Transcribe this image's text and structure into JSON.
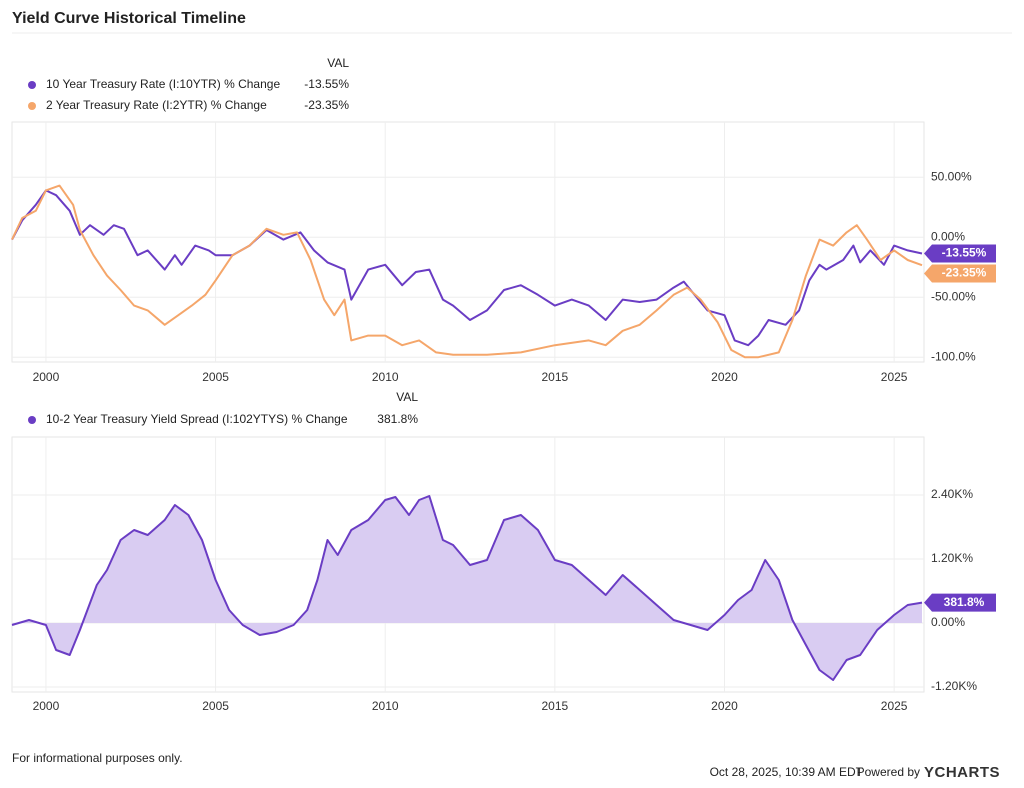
{
  "title": "Yield Curve Historical Timeline",
  "chart_data": [
    {
      "type": "line",
      "legend_header": "VAL",
      "xlim": [
        1999.0,
        2025.88
      ],
      "xticks": [
        2000,
        2005,
        2010,
        2015,
        2020,
        2025
      ],
      "ylim": [
        -104,
        96
      ],
      "yticks": [
        {
          "value": 50,
          "label": "50.00%"
        },
        {
          "value": 0,
          "label": "0.00%"
        },
        {
          "value": -50,
          "label": "-50.00%"
        },
        {
          "value": -100,
          "label": "-100.0%"
        }
      ],
      "grid": true,
      "series": [
        {
          "name": "10 Year Treasury Rate (I:10YTR) % Change",
          "color": "#6a3dc4",
          "last_value_label": "-13.55%",
          "x": [
            1999.0,
            1999.3,
            1999.7,
            2000.0,
            2000.3,
            2000.7,
            2001.0,
            2001.3,
            2001.7,
            2002.0,
            2002.3,
            2002.7,
            2003.0,
            2003.5,
            2003.8,
            2004.0,
            2004.4,
            2004.8,
            2005.0,
            2005.5,
            2006.0,
            2006.5,
            2007.0,
            2007.5,
            2007.9,
            2008.3,
            2008.8,
            2009.0,
            2009.5,
            2010.0,
            2010.5,
            2010.9,
            2011.3,
            2011.7,
            2012.0,
            2012.5,
            2013.0,
            2013.5,
            2014.0,
            2014.5,
            2015.0,
            2015.5,
            2016.0,
            2016.5,
            2017.0,
            2017.5,
            2018.0,
            2018.5,
            2018.8,
            2019.0,
            2019.5,
            2020.0,
            2020.3,
            2020.7,
            2021.0,
            2021.3,
            2021.8,
            2022.2,
            2022.5,
            2022.8,
            2023.0,
            2023.5,
            2023.8,
            2024.0,
            2024.3,
            2024.7,
            2025.0,
            2025.4,
            2025.82
          ],
          "values": [
            -2,
            14,
            27,
            39,
            35,
            22,
            2,
            10,
            2,
            10,
            7,
            -15,
            -11,
            -27,
            -15,
            -23,
            -7,
            -11,
            -15,
            -15,
            -7,
            6,
            -2,
            4,
            -11,
            -21,
            -27,
            -52,
            -27,
            -23,
            -40,
            -29,
            -27,
            -52,
            -57,
            -69,
            -61,
            -44,
            -40,
            -48,
            -57,
            -52,
            -57,
            -69,
            -52,
            -54,
            -52,
            -42,
            -37,
            -44,
            -61,
            -65,
            -86,
            -90,
            -82,
            -69,
            -73,
            -61,
            -36,
            -23,
            -27,
            -19,
            -7,
            -21,
            -11,
            -23,
            -7,
            -11,
            -13.55
          ]
        },
        {
          "name": "2 Year Treasury Rate (I:2YTR) % Change",
          "color": "#f5a66a",
          "last_value_label": "-23.35%",
          "x": [
            1999.0,
            1999.3,
            1999.7,
            2000.0,
            2000.4,
            2000.8,
            2001.0,
            2001.4,
            2001.8,
            2002.2,
            2002.6,
            2003.0,
            2003.5,
            2003.9,
            2004.3,
            2004.7,
            2005.0,
            2005.5,
            2006.0,
            2006.5,
            2007.0,
            2007.4,
            2007.8,
            2008.2,
            2008.5,
            2008.8,
            2009.0,
            2009.5,
            2010.0,
            2010.5,
            2011.0,
            2011.5,
            2012.0,
            2013.0,
            2014.0,
            2015.0,
            2016.0,
            2016.5,
            2017.0,
            2017.5,
            2018.0,
            2018.5,
            2018.9,
            2019.3,
            2019.8,
            2020.2,
            2020.6,
            2021.0,
            2021.6,
            2022.0,
            2022.4,
            2022.8,
            2023.2,
            2023.6,
            2023.9,
            2024.2,
            2024.6,
            2025.0,
            2025.4,
            2025.82
          ],
          "values": [
            -2,
            16,
            22,
            39,
            43,
            27,
            6,
            -15,
            -32,
            -44,
            -57,
            -61,
            -73,
            -65,
            -57,
            -48,
            -36,
            -15,
            -7,
            7,
            2,
            4,
            -19,
            -52,
            -65,
            -52,
            -86,
            -82,
            -82,
            -90,
            -86,
            -96,
            -98,
            -98,
            -96,
            -90,
            -86,
            -90,
            -78,
            -73,
            -61,
            -48,
            -42,
            -52,
            -71,
            -94,
            -100,
            -100,
            -96,
            -69,
            -32,
            -2,
            -7,
            4,
            10,
            -2,
            -19,
            -11,
            -19,
            -23.35
          ]
        }
      ]
    },
    {
      "type": "area",
      "legend_header": "VAL",
      "xlim": [
        1999.0,
        2025.88
      ],
      "xticks": [
        2000,
        2005,
        2010,
        2015,
        2020,
        2025
      ],
      "ylim": [
        -1294,
        3488
      ],
      "yticks": [
        {
          "value": 2400,
          "label": "2.40K%"
        },
        {
          "value": 1200,
          "label": "1.20K%"
        },
        {
          "value": 0,
          "label": "0.00%"
        },
        {
          "value": -1200,
          "label": "-1.20K%"
        }
      ],
      "grid": true,
      "series": [
        {
          "name": "10-2 Year Treasury Yield Spread (I:102YTYS) % Change",
          "color": "#6a3dc4",
          "fill": "#d9ccf2",
          "last_value_label": "381.8%",
          "x": [
            1999.0,
            1999.5,
            2000.0,
            2000.3,
            2000.7,
            2001.0,
            2001.5,
            2001.8,
            2002.2,
            2002.6,
            2003.0,
            2003.5,
            2003.8,
            2004.2,
            2004.6,
            2005.0,
            2005.4,
            2005.8,
            2006.3,
            2006.8,
            2007.3,
            2007.7,
            2008.0,
            2008.3,
            2008.6,
            2009.0,
            2009.5,
            2010.0,
            2010.3,
            2010.7,
            2011.0,
            2011.3,
            2011.7,
            2012.0,
            2012.5,
            2013.0,
            2013.5,
            2014.0,
            2014.5,
            2015.0,
            2015.5,
            2016.0,
            2016.5,
            2017.0,
            2017.5,
            2018.0,
            2018.5,
            2019.0,
            2019.5,
            2020.0,
            2020.4,
            2020.8,
            2021.2,
            2021.6,
            2022.0,
            2022.4,
            2022.8,
            2023.2,
            2023.6,
            2024.0,
            2024.5,
            2025.0,
            2025.4,
            2025.82
          ],
          "values": [
            -38,
            56,
            -38,
            -506,
            -600,
            -131,
            713,
            994,
            1556,
            1744,
            1650,
            1931,
            2213,
            2025,
            1556,
            806,
            244,
            -38,
            -225,
            -169,
            -38,
            244,
            806,
            1556,
            1275,
            1744,
            1931,
            2306,
            2363,
            2025,
            2306,
            2381,
            1556,
            1463,
            1088,
            1181,
            1931,
            2025,
            1744,
            1181,
            1088,
            806,
            525,
            900,
            619,
            338,
            56,
            -38,
            -131,
            150,
            431,
            619,
            1181,
            806,
            56,
            -413,
            -881,
            -1069,
            -694,
            -600,
            -131,
            150,
            338,
            381.8
          ]
        }
      ]
    }
  ],
  "footer": {
    "note": "For informational purposes only.",
    "timestamp": "Oct 28, 2025, 10:39 AM EDT",
    "powered_by": "Powered by",
    "brand": "YCHARTS"
  }
}
